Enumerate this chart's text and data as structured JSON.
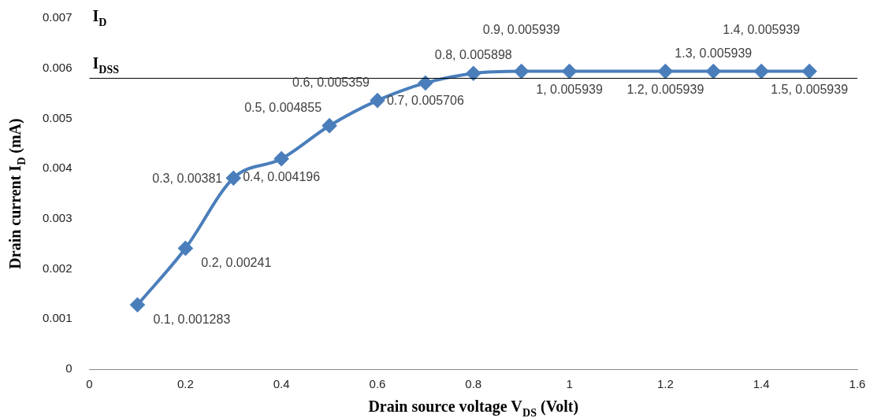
{
  "chart_data": {
    "type": "line",
    "xlabel": "Drain source voltage V$_{DS}$ (Volt)",
    "ylabel": "Drain current I$_{D}$ (mA)",
    "x": [
      0.1,
      0.2,
      0.3,
      0.4,
      0.5,
      0.6,
      0.7,
      0.8,
      0.9,
      1,
      1.2,
      1.3,
      1.4,
      1.5
    ],
    "values": [
      0.001283,
      0.00241,
      0.00381,
      0.004196,
      0.004855,
      0.005359,
      0.005706,
      0.005898,
      0.005939,
      0.005939,
      0.005939,
      0.005939,
      0.005939,
      0.005939
    ],
    "value_labels": [
      "0.1, 0.001283",
      "0.2, 0.00241",
      "0.3, 0.00381",
      "0.4, 0.004196",
      "0.5, 0.004855",
      "0.6, 0.005359",
      "0.7, 0.005706",
      "0.8, 0.005898",
      "0.9, 0.005939",
      "1, 0.005939",
      "1.2, 0.005939",
      "1.3, 0.005939",
      "1.4, 0.005939",
      "1.5, 0.005939"
    ],
    "color": "#4a7ebb",
    "marker": "diamond",
    "line_style": "solid",
    "xlim": [
      0,
      1.6
    ],
    "xticks": [
      0,
      0.2,
      0.4,
      0.6,
      0.8,
      1,
      1.2,
      1.4,
      1.6
    ],
    "ylim": [
      0,
      0.007
    ],
    "yticks": [
      0,
      0.001,
      0.002,
      0.003,
      0.004,
      0.005,
      0.006,
      0.007
    ],
    "grid": false,
    "legend": false,
    "ref_lines": [
      {
        "axis": "y",
        "value": 0.0058,
        "label": "I$_{DSS}$",
        "color": "#000000"
      }
    ],
    "annotations": [
      "I$_{D}$"
    ]
  }
}
